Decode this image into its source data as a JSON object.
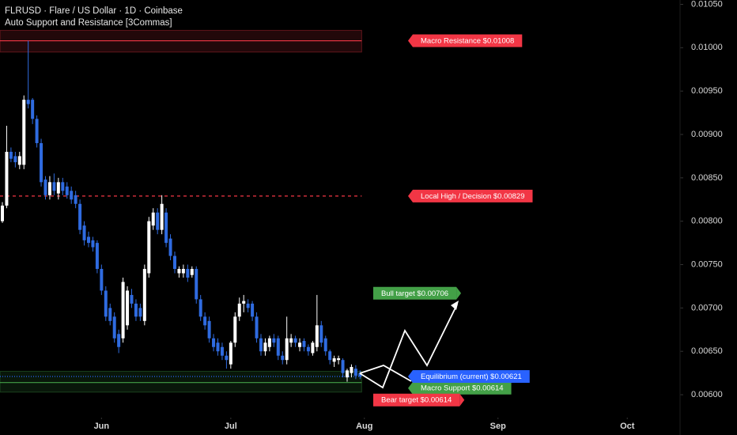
{
  "chart_data": {
    "type": "candlestick",
    "title": "FLRUSD · Flare / US Dollar · 1D · Coinbase",
    "subtitle": "Auto Support and Resistance [3Commas]",
    "up_color": "#ffffff",
    "down_color": "#2f6be0",
    "ylim": [
      0.0058,
      0.01055
    ],
    "yticks": [
      {
        "value": 0.0105,
        "label": "0.01050"
      },
      {
        "value": 0.01,
        "label": "0.01000"
      },
      {
        "value": 0.0095,
        "label": "0.00950"
      },
      {
        "value": 0.009,
        "label": "0.00900"
      },
      {
        "value": 0.0085,
        "label": "0.00850"
      },
      {
        "value": 0.008,
        "label": "0.00800"
      },
      {
        "value": 0.0075,
        "label": "0.00750"
      },
      {
        "value": 0.007,
        "label": "0.00700"
      },
      {
        "value": 0.0065,
        "label": "0.00650"
      },
      {
        "value": 0.006,
        "label": "0.00600"
      }
    ],
    "xlim": [
      -0.55,
      156.7
    ],
    "xticks": [
      {
        "value": 23,
        "label": "Jun"
      },
      {
        "value": 53,
        "label": "Jul"
      },
      {
        "value": 84,
        "label": "Aug"
      },
      {
        "value": 115,
        "label": "Sep"
      },
      {
        "value": 145,
        "label": "Oct"
      }
    ],
    "candles": [
      [
        0.008,
        0.00822,
        0.00798,
        0.00818
      ],
      [
        0.00818,
        0.0091,
        0.00815,
        0.0088
      ],
      [
        0.0088,
        0.00885,
        0.00868,
        0.00872
      ],
      [
        0.00875,
        0.0088,
        0.00862,
        0.00868
      ],
      [
        0.00865,
        0.0088,
        0.0086,
        0.00875
      ],
      [
        0.00865,
        0.00945,
        0.0086,
        0.0094
      ],
      [
        0.0094,
        0.01008,
        0.0093,
        0.00935
      ],
      [
        0.0094,
        0.00942,
        0.00912,
        0.00918
      ],
      [
        0.00918,
        0.00922,
        0.00885,
        0.0089
      ],
      [
        0.0089,
        0.00895,
        0.0084,
        0.00845
      ],
      [
        0.00848,
        0.00852,
        0.00825,
        0.0083
      ],
      [
        0.0083,
        0.00852,
        0.00825,
        0.00845
      ],
      [
        0.00845,
        0.00855,
        0.0083,
        0.00835
      ],
      [
        0.00832,
        0.0085,
        0.00825,
        0.00845
      ],
      [
        0.00845,
        0.0085,
        0.0083,
        0.00835
      ],
      [
        0.0084,
        0.00845,
        0.00826,
        0.0083
      ],
      [
        0.00835,
        0.0084,
        0.0082,
        0.00825
      ],
      [
        0.0083,
        0.00835,
        0.00815,
        0.0082
      ],
      [
        0.0082,
        0.00825,
        0.00785,
        0.0079
      ],
      [
        0.00795,
        0.008,
        0.00772,
        0.00778
      ],
      [
        0.00782,
        0.00788,
        0.0077,
        0.00775
      ],
      [
        0.00778,
        0.00782,
        0.00765,
        0.0077
      ],
      [
        0.00775,
        0.00778,
        0.0074,
        0.00745
      ],
      [
        0.00745,
        0.0075,
        0.00715,
        0.0072
      ],
      [
        0.0072,
        0.00725,
        0.00685,
        0.0069
      ],
      [
        0.007,
        0.00705,
        0.0068,
        0.00685
      ],
      [
        0.0069,
        0.00695,
        0.0066,
        0.00665
      ],
      [
        0.0067,
        0.00675,
        0.00648,
        0.00655
      ],
      [
        0.00665,
        0.00735,
        0.0066,
        0.0073
      ],
      [
        0.0068,
        0.00725,
        0.00675,
        0.0072
      ],
      [
        0.00715,
        0.00722,
        0.007,
        0.00705
      ],
      [
        0.00705,
        0.0071,
        0.00685,
        0.0069
      ],
      [
        0.007,
        0.00705,
        0.00685,
        0.0069
      ],
      [
        0.00685,
        0.0075,
        0.0068,
        0.00745
      ],
      [
        0.0074,
        0.00805,
        0.00735,
        0.008
      ],
      [
        0.00795,
        0.00815,
        0.0079,
        0.0081
      ],
      [
        0.0081,
        0.00815,
        0.00785,
        0.0079
      ],
      [
        0.0079,
        0.0083,
        0.00785,
        0.0082
      ],
      [
        0.0081,
        0.00815,
        0.0077,
        0.00775
      ],
      [
        0.0078,
        0.00785,
        0.00755,
        0.0076
      ],
      [
        0.0076,
        0.00765,
        0.0074,
        0.00745
      ],
      [
        0.0074,
        0.00748,
        0.00735,
        0.00745
      ],
      [
        0.0074,
        0.0075,
        0.00735,
        0.00745
      ],
      [
        0.00745,
        0.0075,
        0.0073,
        0.00735
      ],
      [
        0.00738,
        0.00748,
        0.00735,
        0.00745
      ],
      [
        0.00745,
        0.00748,
        0.00705,
        0.0071
      ],
      [
        0.0071,
        0.00715,
        0.00685,
        0.0069
      ],
      [
        0.0069,
        0.00695,
        0.00675,
        0.0068
      ],
      [
        0.00685,
        0.0069,
        0.0066,
        0.00665
      ],
      [
        0.00665,
        0.0067,
        0.0065,
        0.00655
      ],
      [
        0.0066,
        0.00665,
        0.00645,
        0.0065
      ],
      [
        0.00655,
        0.0066,
        0.0064,
        0.00645
      ],
      [
        0.00645,
        0.0065,
        0.0063,
        0.0064
      ],
      [
        0.00635,
        0.00662,
        0.0063,
        0.0066
      ],
      [
        0.0066,
        0.00695,
        0.00655,
        0.0069
      ],
      [
        0.0069,
        0.00712,
        0.00685,
        0.00705
      ],
      [
        0.00705,
        0.00715,
        0.00695,
        0.00708
      ],
      [
        0.00705,
        0.0071,
        0.00695,
        0.007
      ],
      [
        0.00705,
        0.00708,
        0.00685,
        0.0069
      ],
      [
        0.0069,
        0.00695,
        0.0066,
        0.00665
      ],
      [
        0.00665,
        0.0067,
        0.00645,
        0.0065
      ],
      [
        0.0065,
        0.00665,
        0.00645,
        0.0066
      ],
      [
        0.00655,
        0.00668,
        0.0065,
        0.00665
      ],
      [
        0.00665,
        0.0067,
        0.00655,
        0.0066
      ],
      [
        0.00665,
        0.00668,
        0.0064,
        0.00645
      ],
      [
        0.00645,
        0.0065,
        0.00635,
        0.0064
      ],
      [
        0.0064,
        0.0069,
        0.00635,
        0.00665
      ],
      [
        0.0066,
        0.0067,
        0.00655,
        0.00665
      ],
      [
        0.00665,
        0.00668,
        0.00655,
        0.0066
      ],
      [
        0.00655,
        0.00665,
        0.0065,
        0.0066
      ],
      [
        0.00662,
        0.00665,
        0.0065,
        0.00655
      ],
      [
        0.00655,
        0.00658,
        0.00645,
        0.0065
      ],
      [
        0.00648,
        0.00662,
        0.00645,
        0.0066
      ],
      [
        0.00655,
        0.00715,
        0.0065,
        0.0068
      ],
      [
        0.0068,
        0.00685,
        0.00655,
        0.0066
      ],
      [
        0.00665,
        0.00668,
        0.00645,
        0.0065
      ],
      [
        0.0065,
        0.00652,
        0.00635,
        0.0064
      ],
      [
        0.00638,
        0.00645,
        0.00632,
        0.00642
      ],
      [
        0.0064,
        0.00645,
        0.00635,
        0.00642
      ],
      [
        0.0064,
        0.00642,
        0.0062,
        0.00625
      ],
      [
        0.0062,
        0.0063,
        0.00615,
        0.00628
      ],
      [
        0.00625,
        0.00635,
        0.0062,
        0.00632
      ],
      [
        0.0063,
        0.00634,
        0.00618,
        0.00622
      ],
      [
        0.00625,
        0.00628,
        0.00618,
        0.00621
      ]
    ],
    "zones": [
      {
        "range": [
          0.00995,
          0.0102
        ],
        "color": "#f23645"
      },
      {
        "range": [
          0.00603,
          0.00627
        ],
        "color": "#43a047"
      }
    ],
    "levels": [
      {
        "label": "Macro Resistance $0.01008",
        "value": 0.01008,
        "color": "#f23645",
        "line_style": "solid"
      },
      {
        "label": "Local High / Decision $0.00829",
        "value": 0.00829,
        "color": "#f23645",
        "line_style": "dashed"
      },
      {
        "label": "Macro Support $0.00614",
        "value": 0.00614,
        "color": "#43a047",
        "line_style": "solid"
      },
      {
        "label": "Equilibrium (current) $0.00621",
        "value": 0.00621,
        "color": "#2962ff",
        "line_style": "dotted"
      }
    ],
    "targets": [
      {
        "label": "Bull target $0.00706",
        "value": 0.00706,
        "color": "#43a047"
      },
      {
        "label": "Bear target $0.00614",
        "value": 0.00614,
        "color": "#f23645"
      }
    ]
  }
}
